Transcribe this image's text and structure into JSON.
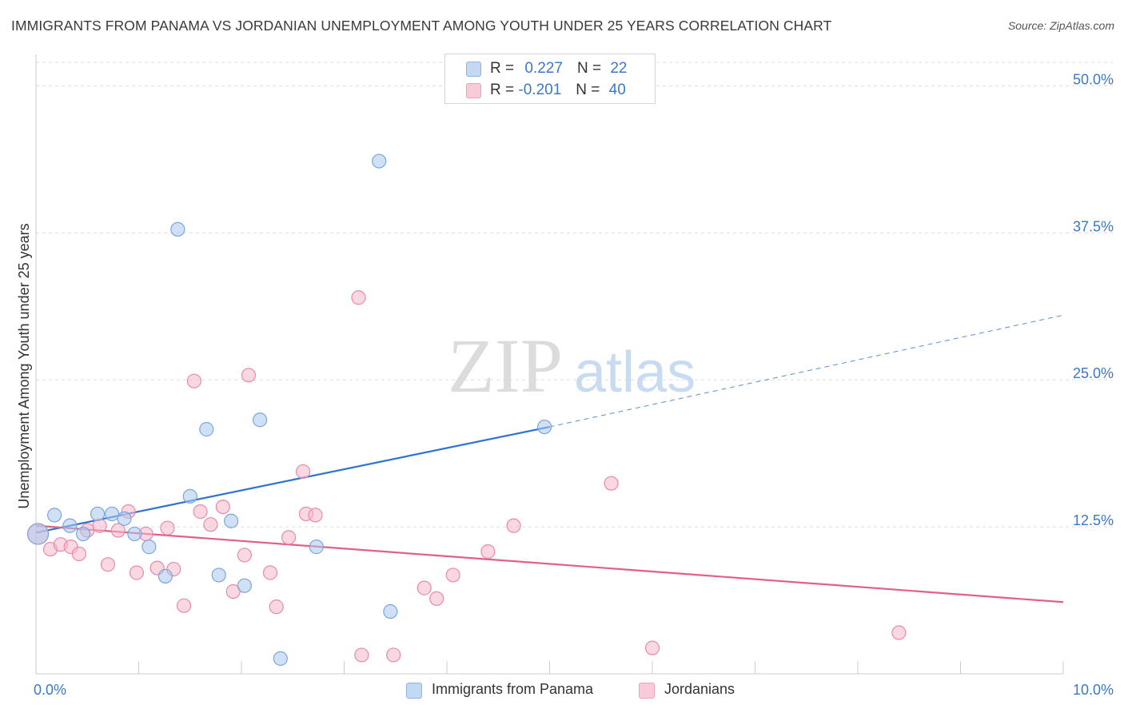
{
  "header": {
    "title": "IMMIGRANTS FROM PANAMA VS JORDANIAN UNEMPLOYMENT AMONG YOUTH UNDER 25 YEARS CORRELATION CHART",
    "source": "Source: ZipAtlas.com"
  },
  "watermark": {
    "zip": "ZIP",
    "atlas": "atlas"
  },
  "legend": {
    "r_label": "R =",
    "n_label": "N =",
    "series": [
      {
        "name": "Immigrants from Panama",
        "r": "0.227",
        "n": "22",
        "color": "#aac8ee"
      },
      {
        "name": "Jordanians",
        "r": "-0.201",
        "n": "40",
        "color": "#f5b8cb"
      }
    ]
  },
  "chart_data": {
    "type": "scatter",
    "title": "IMMIGRANTS FROM PANAMA VS JORDANIAN UNEMPLOYMENT AMONG YOUTH UNDER 25 YEARS CORRELATION CHART",
    "xlabel": "",
    "ylabel": "Unemployment Among Youth under 25 years",
    "xlim": [
      0,
      10
    ],
    "ylim": [
      0,
      52
    ],
    "x_tick_labels": [
      {
        "value": 0,
        "label": "0.0%"
      },
      {
        "value": 10,
        "label": "10.0%"
      }
    ],
    "y_tick_labels": [
      {
        "value": 12.5,
        "label": "12.5%"
      },
      {
        "value": 25,
        "label": "25.0%"
      },
      {
        "value": 37.5,
        "label": "37.5%"
      },
      {
        "value": 50,
        "label": "50.0%"
      }
    ],
    "grid": true,
    "legend_position": "top-center",
    "series": [
      {
        "name": "Immigrants from Panama",
        "color": "#aac8ee",
        "stroke": "#7aa6db",
        "trend_color": "#2f72d0",
        "trend": {
          "x0": 0,
          "y0": 12.0,
          "x1": 5.0,
          "y1": 21.0,
          "dash_to_x": 10,
          "dash_to_y": 30.5
        },
        "points": [
          {
            "x": 0.02,
            "y": 11.9,
            "big": true
          },
          {
            "x": 0.18,
            "y": 13.5
          },
          {
            "x": 0.33,
            "y": 12.6
          },
          {
            "x": 0.46,
            "y": 11.9
          },
          {
            "x": 0.6,
            "y": 13.6
          },
          {
            "x": 0.74,
            "y": 13.6
          },
          {
            "x": 0.86,
            "y": 13.2
          },
          {
            "x": 0.96,
            "y": 11.9
          },
          {
            "x": 1.1,
            "y": 10.8
          },
          {
            "x": 1.26,
            "y": 8.3
          },
          {
            "x": 1.38,
            "y": 37.8
          },
          {
            "x": 1.5,
            "y": 15.1
          },
          {
            "x": 1.66,
            "y": 20.8
          },
          {
            "x": 1.78,
            "y": 8.4
          },
          {
            "x": 1.9,
            "y": 13.0
          },
          {
            "x": 2.18,
            "y": 21.6
          },
          {
            "x": 2.03,
            "y": 7.5
          },
          {
            "x": 2.38,
            "y": 1.3
          },
          {
            "x": 2.73,
            "y": 10.8
          },
          {
            "x": 3.34,
            "y": 43.6
          },
          {
            "x": 3.45,
            "y": 5.3
          },
          {
            "x": 4.95,
            "y": 21.0
          }
        ]
      },
      {
        "name": "Jordanians",
        "color": "#f5b8cb",
        "stroke": "#e88aaa",
        "trend_color": "#e0608a",
        "trend": {
          "x0": 0,
          "y0": 12.6,
          "x1": 10,
          "y1": 6.1
        },
        "points": [
          {
            "x": 0.02,
            "y": 11.9,
            "big": true
          },
          {
            "x": 0.14,
            "y": 10.6
          },
          {
            "x": 0.24,
            "y": 11.0
          },
          {
            "x": 0.34,
            "y": 10.8
          },
          {
            "x": 0.42,
            "y": 10.2
          },
          {
            "x": 0.5,
            "y": 12.2
          },
          {
            "x": 0.62,
            "y": 12.6
          },
          {
            "x": 0.7,
            "y": 9.3
          },
          {
            "x": 0.8,
            "y": 12.2
          },
          {
            "x": 0.9,
            "y": 13.8
          },
          {
            "x": 0.98,
            "y": 8.6
          },
          {
            "x": 1.07,
            "y": 11.9
          },
          {
            "x": 1.18,
            "y": 9.0
          },
          {
            "x": 1.28,
            "y": 12.4
          },
          {
            "x": 1.34,
            "y": 8.9
          },
          {
            "x": 1.44,
            "y": 5.8
          },
          {
            "x": 1.54,
            "y": 24.9
          },
          {
            "x": 1.6,
            "y": 13.8
          },
          {
            "x": 1.7,
            "y": 12.7
          },
          {
            "x": 1.82,
            "y": 14.2
          },
          {
            "x": 1.92,
            "y": 7.0
          },
          {
            "x": 2.03,
            "y": 10.1
          },
          {
            "x": 2.07,
            "y": 25.4
          },
          {
            "x": 2.28,
            "y": 8.6
          },
          {
            "x": 2.34,
            "y": 5.7
          },
          {
            "x": 2.46,
            "y": 11.6
          },
          {
            "x": 2.6,
            "y": 17.2
          },
          {
            "x": 2.63,
            "y": 13.6
          },
          {
            "x": 2.72,
            "y": 13.5
          },
          {
            "x": 3.14,
            "y": 32.0
          },
          {
            "x": 3.17,
            "y": 1.6
          },
          {
            "x": 3.48,
            "y": 1.6
          },
          {
            "x": 3.78,
            "y": 7.3
          },
          {
            "x": 3.9,
            "y": 6.4
          },
          {
            "x": 4.06,
            "y": 8.4
          },
          {
            "x": 4.4,
            "y": 10.4
          },
          {
            "x": 4.65,
            "y": 12.6
          },
          {
            "x": 5.6,
            "y": 16.2
          },
          {
            "x": 6.0,
            "y": 2.2
          },
          {
            "x": 8.4,
            "y": 3.5
          }
        ]
      }
    ]
  }
}
